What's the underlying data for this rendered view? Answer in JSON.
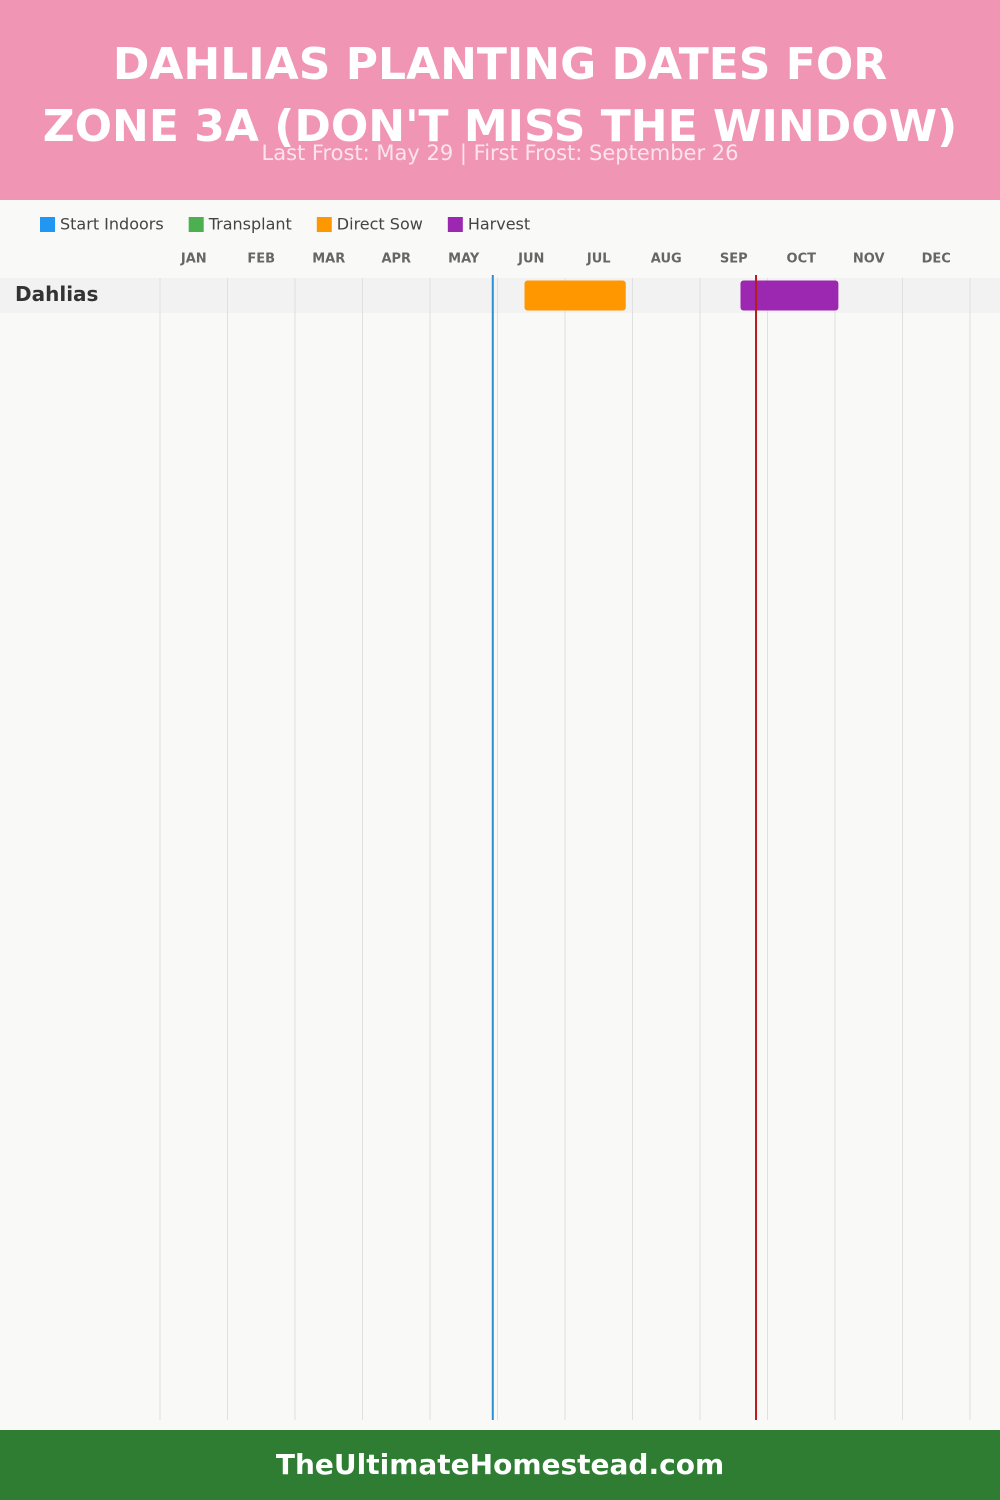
{
  "chart_data": {
    "type": "gantt",
    "title": "DAHLIAS PLANTING DATES FOR ZONE 3A (DON'T MISS THE WINDOW)",
    "subtitle": "Last Frost: May 29 | First Frost: September 26",
    "series": [
      {
        "name": "Start Indoors",
        "color": "#2196f3"
      },
      {
        "name": "Transplant",
        "color": "#4caf50"
      },
      {
        "name": "Direct Sow",
        "color": "#ff9800"
      },
      {
        "name": "Harvest",
        "color": "#9c27b0"
      }
    ],
    "categories": [
      "JAN",
      "FEB",
      "MAR",
      "APR",
      "MAY",
      "JUN",
      "JUL",
      "AUG",
      "SEP",
      "OCT",
      "NOV",
      "DEC"
    ],
    "xlim": [
      0,
      12
    ],
    "xticks": [
      0,
      1,
      2,
      3,
      4,
      5,
      6,
      7,
      8,
      9,
      10,
      11,
      12
    ],
    "grid": true,
    "rows": [
      {
        "name": "Dahlias",
        "bars": [
          {
            "series": 2,
            "start": 5.4,
            "end": 6.9
          },
          {
            "series": 3,
            "start": 8.6,
            "end": 10.05
          }
        ]
      }
    ],
    "markers": [
      {
        "value": 4.93,
        "color": "#2a8fd0"
      },
      {
        "value": 8.83,
        "color": "#b71c1c"
      }
    ],
    "footer": "TheUltimateHomestead.com"
  }
}
